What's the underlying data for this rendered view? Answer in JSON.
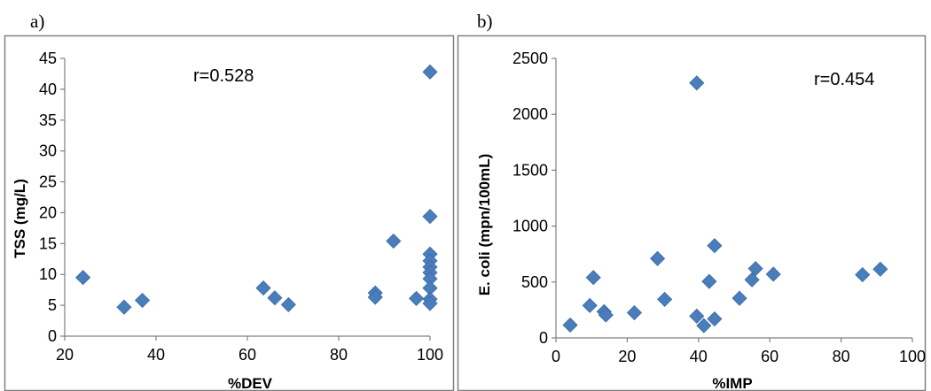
{
  "panels": [
    {
      "label": "a)"
    },
    {
      "label": "b)"
    }
  ],
  "colors": {
    "marker": "#4a7ebb",
    "frame": "#808080",
    "axis": "#808080"
  },
  "chart_data": [
    {
      "type": "scatter",
      "panel": "a)",
      "xlabel": "%DEV",
      "ylabel": "TSS (mg/L)",
      "xlim": [
        20,
        100
      ],
      "ylim": [
        0,
        45
      ],
      "xticks": [
        20,
        40,
        60,
        80,
        100
      ],
      "yticks": [
        0,
        5,
        10,
        15,
        20,
        25,
        30,
        35,
        40,
        45
      ],
      "annotation": "r=0.528",
      "marker": "diamond",
      "grid": false,
      "points": [
        {
          "x": 24,
          "y": 9.5
        },
        {
          "x": 33,
          "y": 4.7
        },
        {
          "x": 37,
          "y": 5.8
        },
        {
          "x": 63.5,
          "y": 7.8
        },
        {
          "x": 66,
          "y": 6.2
        },
        {
          "x": 69,
          "y": 5.1
        },
        {
          "x": 88,
          "y": 7.0
        },
        {
          "x": 88,
          "y": 6.3
        },
        {
          "x": 92,
          "y": 15.4
        },
        {
          "x": 97,
          "y": 6.1
        },
        {
          "x": 100,
          "y": 42.8
        },
        {
          "x": 100,
          "y": 19.4
        },
        {
          "x": 100,
          "y": 13.3
        },
        {
          "x": 100,
          "y": 12.2
        },
        {
          "x": 100,
          "y": 11.2
        },
        {
          "x": 100,
          "y": 10.3
        },
        {
          "x": 100,
          "y": 9.3
        },
        {
          "x": 100,
          "y": 7.8
        },
        {
          "x": 100,
          "y": 6.0
        },
        {
          "x": 100,
          "y": 5.3
        }
      ]
    },
    {
      "type": "scatter",
      "panel": "b)",
      "xlabel": "%IMP",
      "ylabel": "E. coli (mpn/100mL)",
      "xlim": [
        0,
        100
      ],
      "ylim": [
        0,
        2500
      ],
      "xticks": [
        0,
        20,
        40,
        60,
        80,
        100
      ],
      "yticks": [
        0,
        500,
        1000,
        1500,
        2000,
        2500
      ],
      "annotation": "r=0.454",
      "marker": "diamond",
      "grid": false,
      "points": [
        {
          "x": 4,
          "y": 115
        },
        {
          "x": 9.5,
          "y": 290
        },
        {
          "x": 10.5,
          "y": 540
        },
        {
          "x": 13.5,
          "y": 235
        },
        {
          "x": 14,
          "y": 205
        },
        {
          "x": 22,
          "y": 225
        },
        {
          "x": 28.5,
          "y": 710
        },
        {
          "x": 30.5,
          "y": 345
        },
        {
          "x": 39.5,
          "y": 2280
        },
        {
          "x": 39.5,
          "y": 195
        },
        {
          "x": 41.5,
          "y": 110
        },
        {
          "x": 43,
          "y": 505
        },
        {
          "x": 44.5,
          "y": 170
        },
        {
          "x": 44.5,
          "y": 825
        },
        {
          "x": 51.5,
          "y": 355
        },
        {
          "x": 55,
          "y": 520
        },
        {
          "x": 56,
          "y": 620
        },
        {
          "x": 61,
          "y": 570
        },
        {
          "x": 86,
          "y": 565
        },
        {
          "x": 91,
          "y": 615
        }
      ]
    }
  ]
}
